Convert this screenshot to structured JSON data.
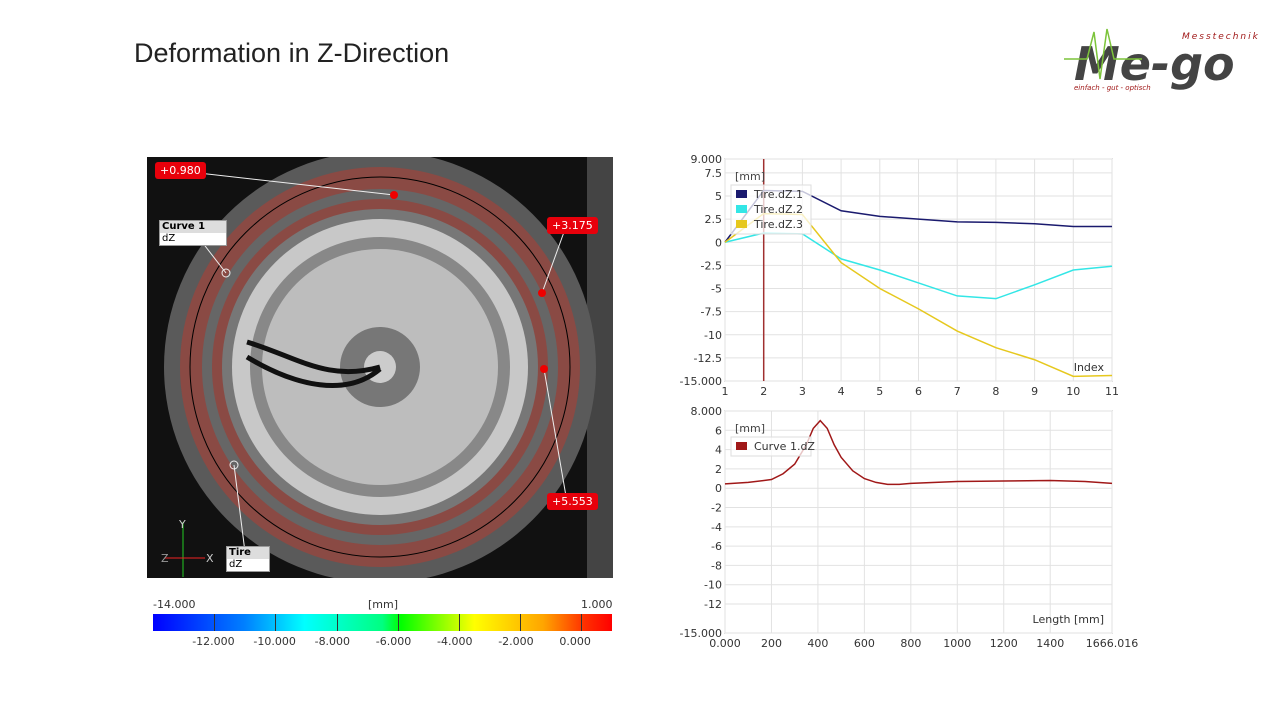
{
  "title": "Deformation in Z-Direction",
  "logo": {
    "brand": "Me-go",
    "top": "Messtechnik",
    "tagline": "einfach - gut - optisch"
  },
  "image": {
    "tags": [
      "+0.980",
      "+3.175",
      "+5.553"
    ],
    "curve_label": {
      "name": "Curve 1",
      "field": "dZ"
    },
    "tire_label": {
      "name": "Tire",
      "field": "dZ"
    },
    "axes": {
      "y": "Y",
      "x": "X",
      "z": "Z"
    }
  },
  "colorbar": {
    "min": "-14.000",
    "max": "1.000",
    "unit": "[mm]",
    "ticks": [
      "-12.000",
      "-10.000",
      "-8.000",
      "-6.000",
      "-4.000",
      "-2.000",
      "0.000"
    ],
    "colors": [
      "#0000ff",
      "#00ffff",
      "#00ff00",
      "#ffff00",
      "#ff0000"
    ]
  },
  "chart_data": [
    {
      "type": "line",
      "ylabel": "[mm]",
      "xlabel": "Index",
      "ylim": [
        -15,
        9
      ],
      "xlim": [
        1,
        11
      ],
      "yticks": [
        "9.000",
        "7.5",
        "5",
        "2.5",
        "0",
        "-2.5",
        "-5",
        "-7.5",
        "-10",
        "-12.5",
        "-15.000"
      ],
      "xticks": [
        "1",
        "2",
        "3",
        "4",
        "5",
        "6",
        "7",
        "8",
        "9",
        "10",
        "11"
      ],
      "grid": true,
      "legend": "top-left",
      "cursor_x": 2,
      "x": [
        1,
        2,
        3,
        4,
        5,
        6,
        7,
        8,
        9,
        10,
        11
      ],
      "series": [
        {
          "name": "Tire.dZ.1",
          "color": "#1a1a6e",
          "values": [
            0,
            5.6,
            5.5,
            3.4,
            2.8,
            2.5,
            2.2,
            2.15,
            2.0,
            1.7,
            1.7
          ]
        },
        {
          "name": "Tire.dZ.2",
          "color": "#33e6e6",
          "values": [
            0,
            1.0,
            0.9,
            -1.8,
            -3.0,
            -4.4,
            -5.8,
            -6.1,
            -4.6,
            -3.0,
            -2.6
          ]
        },
        {
          "name": "Tire.dZ.3",
          "color": "#e6c81e",
          "values": [
            0,
            3.1,
            3.0,
            -2.2,
            -5.0,
            -7.2,
            -9.6,
            -11.4,
            -12.7,
            -14.5,
            -14.4
          ]
        }
      ]
    },
    {
      "type": "line",
      "ylabel": "[mm]",
      "xlabel": "Length [mm]",
      "ylim": [
        -15,
        8
      ],
      "xlim": [
        0,
        1666.016
      ],
      "yticks": [
        "8.000",
        "6",
        "4",
        "2",
        "0",
        "-2",
        "-4",
        "-6",
        "-8",
        "-10",
        "-12",
        "-15.000"
      ],
      "xticks": [
        "0.000",
        "200",
        "400",
        "600",
        "800",
        "1000",
        "1200",
        "1400",
        "1666.016"
      ],
      "grid": true,
      "legend": "top-left",
      "series": [
        {
          "name": "Curve 1.dZ",
          "color": "#a01818",
          "x": [
            0,
            100,
            200,
            250,
            300,
            350,
            380,
            410,
            440,
            470,
            500,
            550,
            600,
            650,
            700,
            750,
            800,
            1000,
            1200,
            1400,
            1550,
            1666
          ],
          "values": [
            0.45,
            0.6,
            0.9,
            1.5,
            2.5,
            4.5,
            6.2,
            7.0,
            6.2,
            4.5,
            3.2,
            1.8,
            1.0,
            0.6,
            0.4,
            0.4,
            0.5,
            0.7,
            0.75,
            0.8,
            0.7,
            0.5
          ]
        }
      ]
    }
  ]
}
